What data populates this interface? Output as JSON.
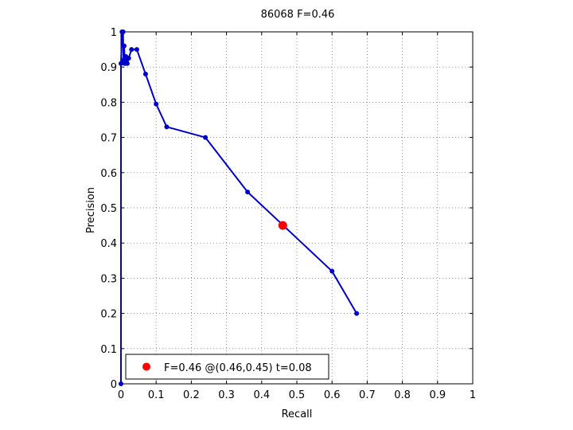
{
  "chart_data": {
    "type": "line",
    "title": "86068 F=0.46",
    "xlabel": "Recall",
    "ylabel": "Precision",
    "xlim": [
      0,
      1
    ],
    "ylim": [
      0,
      1
    ],
    "xticks": [
      "0",
      "0.1",
      "0.2",
      "0.3",
      "0.4",
      "0.5",
      "0.6",
      "0.7",
      "0.8",
      "0.9",
      "1"
    ],
    "yticks": [
      "0",
      "0.1",
      "0.2",
      "0.3",
      "0.4",
      "0.5",
      "0.6",
      "0.7",
      "0.8",
      "0.9",
      "1"
    ],
    "grid": true,
    "series": [
      {
        "color": "#0000cc",
        "points": [
          [
            0.0,
            0.0
          ],
          [
            0.0,
            0.91
          ],
          [
            0.003,
            1.0
          ],
          [
            0.006,
            1.0
          ],
          [
            0.007,
            0.92
          ],
          [
            0.009,
            0.96
          ],
          [
            0.011,
            0.91
          ],
          [
            0.014,
            0.93
          ],
          [
            0.018,
            0.91
          ],
          [
            0.022,
            0.925
          ],
          [
            0.03,
            0.95
          ],
          [
            0.045,
            0.95
          ],
          [
            0.07,
            0.88
          ],
          [
            0.1,
            0.795
          ],
          [
            0.13,
            0.73
          ],
          [
            0.24,
            0.7
          ],
          [
            0.36,
            0.545
          ],
          [
            0.6,
            0.32
          ],
          [
            0.67,
            0.2
          ]
        ]
      }
    ],
    "highlight": {
      "x": 0.46,
      "y": 0.45,
      "color": "#ff0000"
    },
    "legend": {
      "position": "bottom-left",
      "label": "F=0.46 @(0.46,0.45) t=0.08",
      "color": "#ff0000"
    }
  }
}
